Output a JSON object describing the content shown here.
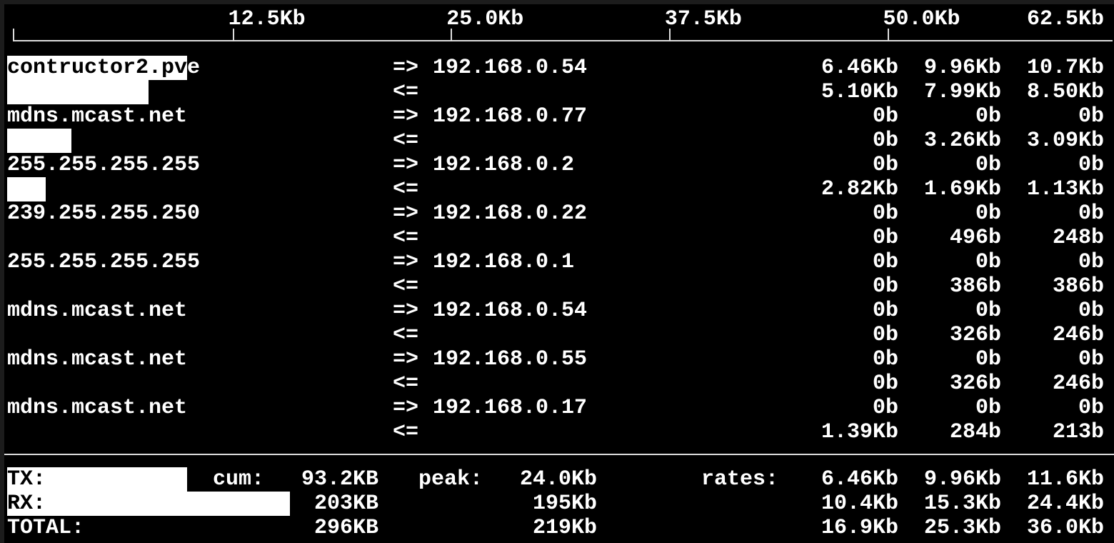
{
  "scale": {
    "unit_px_note": "",
    "ticks": [
      "12.5Kb",
      "25.0Kb",
      "37.5Kb",
      "50.0Kb",
      "62.5Kb"
    ],
    "tick_values_kb": [
      12.5,
      25.0,
      37.5,
      50.0,
      62.5
    ]
  },
  "hosts": [
    {
      "src": "contructor2.pve",
      "dst": "192.168.0.54",
      "tx": [
        "6.46Kb",
        "9.96Kb",
        "10.7Kb"
      ],
      "rx": [
        "5.10Kb",
        "7.99Kb",
        "8.50Kb"
      ],
      "tx_bar_kb": 10.3,
      "rx_bar_kb": 8.1
    },
    {
      "src": "mdns.mcast.net",
      "dst": "192.168.0.77",
      "tx": [
        "0b",
        "0b",
        "0b"
      ],
      "rx": [
        "0b",
        "3.26Kb",
        "3.09Kb"
      ],
      "tx_bar_kb": 0,
      "rx_bar_kb": 3.7
    },
    {
      "src": "255.255.255.255",
      "dst": "192.168.0.2",
      "tx": [
        "0b",
        "0b",
        "0b"
      ],
      "rx": [
        "2.82Kb",
        "1.69Kb",
        "1.13Kb"
      ],
      "tx_bar_kb": 0,
      "rx_bar_kb": 2.2
    },
    {
      "src": "239.255.255.250",
      "dst": "192.168.0.22",
      "tx": [
        "0b",
        "0b",
        "0b"
      ],
      "rx": [
        "0b",
        "496b",
        "248b"
      ],
      "tx_bar_kb": 0,
      "rx_bar_kb": 0
    },
    {
      "src": "255.255.255.255",
      "dst": "192.168.0.1",
      "tx": [
        "0b",
        "0b",
        "0b"
      ],
      "rx": [
        "0b",
        "386b",
        "386b"
      ],
      "tx_bar_kb": 0,
      "rx_bar_kb": 0
    },
    {
      "src": "mdns.mcast.net",
      "dst": "192.168.0.54",
      "tx": [
        "0b",
        "0b",
        "0b"
      ],
      "rx": [
        "0b",
        "326b",
        "246b"
      ],
      "tx_bar_kb": 0,
      "rx_bar_kb": 0
    },
    {
      "src": "mdns.mcast.net",
      "dst": "192.168.0.55",
      "tx": [
        "0b",
        "0b",
        "0b"
      ],
      "rx": [
        "0b",
        "326b",
        "246b"
      ],
      "tx_bar_kb": 0,
      "rx_bar_kb": 0
    },
    {
      "src": "mdns.mcast.net",
      "dst": "192.168.0.17",
      "tx": [
        "0b",
        "0b",
        "0b"
      ],
      "rx": [
        "1.39Kb",
        "284b",
        "213b"
      ],
      "tx_bar_kb": 0,
      "rx_bar_kb": 0
    }
  ],
  "arrows": {
    "out": "=>",
    "in": "<="
  },
  "totals": {
    "cum_label": "cum:",
    "peak_label": "peak:",
    "rates_label": "rates:",
    "rows": [
      {
        "label": "TX:",
        "cum": "93.2KB",
        "peak": "24.0Kb",
        "rates": [
          "6.46Kb",
          "9.96Kb",
          "11.6Kb"
        ],
        "bar_kb": 10.3
      },
      {
        "label": "RX:",
        "cum": "203KB",
        "peak": "195Kb",
        "rates": [
          "10.4Kb",
          "15.3Kb",
          "24.4Kb"
        ],
        "bar_kb": 16.2
      },
      {
        "label": "TOTAL:",
        "cum": "296KB",
        "peak": "219Kb",
        "rates": [
          "16.9Kb",
          "25.3Kb",
          "36.0Kb"
        ],
        "bar_kb": 0
      }
    ]
  }
}
